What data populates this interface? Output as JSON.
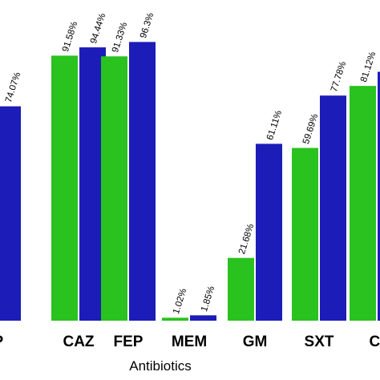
{
  "chart_data": {
    "type": "bar",
    "xlabel": "Antibiotics",
    "ylim": [
      0,
      100
    ],
    "categories": [
      "ZP",
      "CAZ",
      "FEP",
      "MEM",
      "GM",
      "SXT",
      "CI"
    ],
    "series": [
      {
        "color": "#29c21f",
        "values": [
          null,
          91.58,
          91.33,
          1.02,
          21.68,
          59.69,
          81.12
        ],
        "labels": [
          "",
          "91.58%",
          "91.33%",
          "1.02%",
          "21.68%",
          "59.69%",
          "81.12%"
        ]
      },
      {
        "color": "#1c1cb8",
        "values": [
          74.07,
          94.44,
          96.3,
          1.85,
          61.11,
          77.78,
          86.0
        ],
        "labels": [
          "74.07%",
          "94.44%",
          "96.3%",
          "1.85%",
          "61.11%",
          "77.78%",
          ""
        ]
      }
    ]
  }
}
